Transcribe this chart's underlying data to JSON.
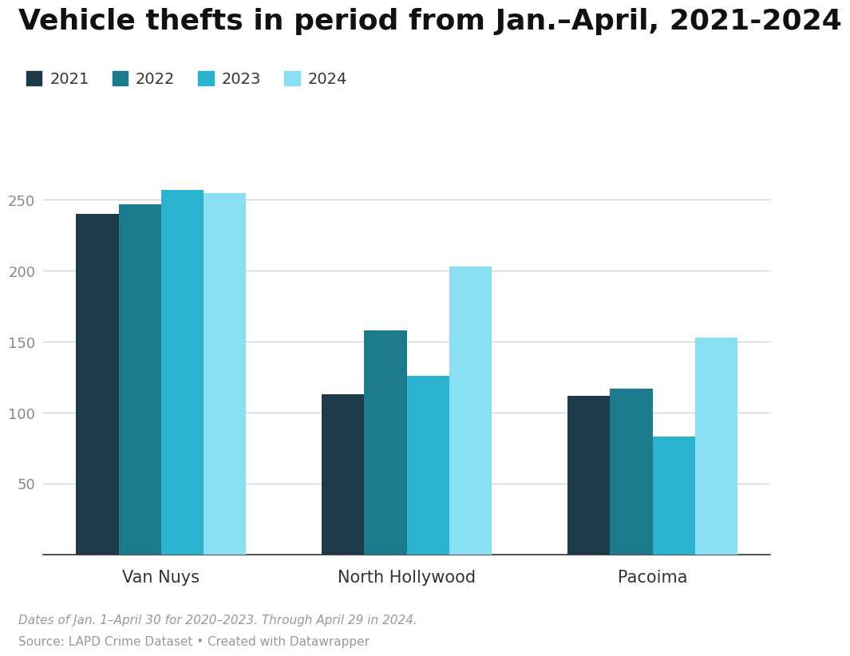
{
  "title": "Vehicle thefts in period from Jan.–April, 2021-2024",
  "neighborhoods": [
    "Van Nuys",
    "North Hollywood",
    "Pacoima"
  ],
  "years": [
    "2021",
    "2022",
    "2023",
    "2024"
  ],
  "values": {
    "Van Nuys": [
      240,
      247,
      257,
      255
    ],
    "North Hollywood": [
      113,
      158,
      126,
      203
    ],
    "Pacoima": [
      112,
      117,
      83,
      153
    ]
  },
  "colors": [
    "#1c3a4a",
    "#1b7a8c",
    "#2ab2ce",
    "#88e0f2"
  ],
  "ylim": [
    0,
    275
  ],
  "yticks": [
    50,
    100,
    150,
    200,
    250
  ],
  "background_color": "#ffffff",
  "grid_color": "#cccccc",
  "footnote_italic": "Dates of Jan. 1–April 30 for 2020–2023. Through April 29 in 2024.",
  "footnote_normal": "Source: LAPD Crime Dataset • Created with Datawrapper",
  "footnote_color": "#999999",
  "title_fontsize": 26,
  "legend_fontsize": 14,
  "tick_fontsize": 13,
  "xlabel_fontsize": 15
}
